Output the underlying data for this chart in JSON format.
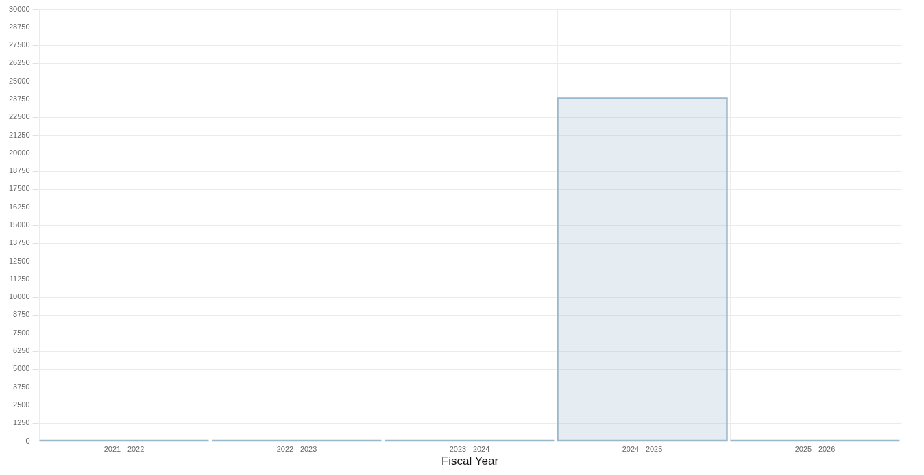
{
  "chart_data": {
    "type": "bar",
    "xlabel": "Fiscal Year",
    "categories": [
      "2021 - 2022",
      "2022 - 2023",
      "2023 - 2024",
      "2024 - 2025",
      "2025 - 2026"
    ],
    "series": [
      {
        "color": "#9ab7cc",
        "values": [
          0,
          0,
          0,
          23800,
          0
        ]
      }
    ],
    "ylim": [
      0,
      30000
    ],
    "yticks": [
      0,
      1250,
      2500,
      3750,
      5000,
      6250,
      7500,
      8750,
      10000,
      11250,
      12500,
      13750,
      15000,
      16250,
      17500,
      18750,
      20000,
      21250,
      22500,
      23750,
      25000,
      26250,
      27500,
      28750,
      30000
    ],
    "grid": true
  }
}
